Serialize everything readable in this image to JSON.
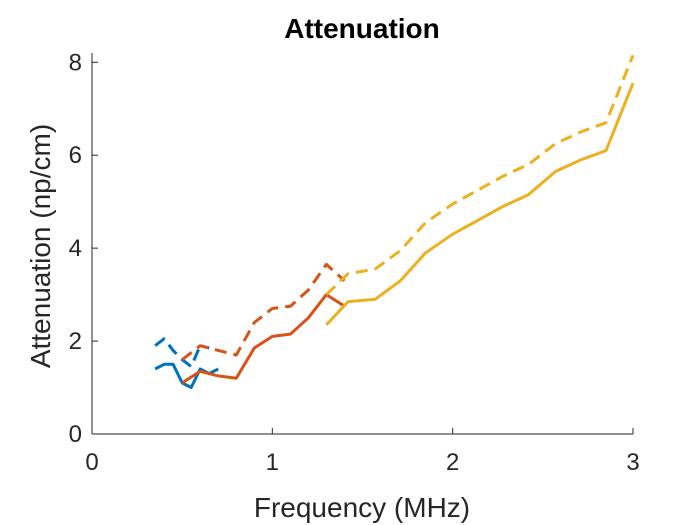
{
  "chart_data": {
    "type": "line",
    "title": "Attenuation",
    "xlabel": "Frequency (MHz)",
    "ylabel": "Attenuation (np/cm)",
    "xlim": [
      0,
      3
    ],
    "ylim": [
      0,
      8.2
    ],
    "xticks": [
      0,
      1,
      2,
      3
    ],
    "yticks": [
      0,
      2,
      4,
      6,
      8
    ],
    "xtick_labels": [
      "0",
      "1",
      "2",
      "3"
    ],
    "ytick_labels": [
      "0",
      "2",
      "4",
      "6",
      "8"
    ],
    "grid": false,
    "legend": "none",
    "series": [
      {
        "color": "#0072BD",
        "style": "solid",
        "x": [
          0.35,
          0.4,
          0.45,
          0.5,
          0.55,
          0.6,
          0.65,
          0.7
        ],
        "y": [
          1.4,
          1.5,
          1.5,
          1.1,
          1.0,
          1.4,
          1.3,
          1.4
        ]
      },
      {
        "color": "#0072BD",
        "style": "dashed",
        "x": [
          0.35,
          0.4,
          0.45,
          0.5,
          0.55,
          0.6,
          0.65
        ],
        "y": [
          1.9,
          2.05,
          1.8,
          1.6,
          1.45,
          1.9,
          1.85
        ]
      },
      {
        "color": "#D95319",
        "style": "solid",
        "x": [
          0.5,
          0.6,
          0.7,
          0.8,
          0.9,
          1.0,
          1.1,
          1.2,
          1.3,
          1.4
        ],
        "y": [
          1.1,
          1.35,
          1.25,
          1.2,
          1.85,
          2.1,
          2.15,
          2.5,
          3.0,
          2.75
        ]
      },
      {
        "color": "#D95319",
        "style": "dashed",
        "x": [
          0.5,
          0.6,
          0.7,
          0.8,
          0.9,
          1.0,
          1.1,
          1.2,
          1.3,
          1.4
        ],
        "y": [
          1.6,
          1.9,
          1.8,
          1.7,
          2.4,
          2.7,
          2.75,
          3.1,
          3.65,
          3.3
        ]
      },
      {
        "color": "#EDB120",
        "style": "solid",
        "x": [
          1.3,
          1.42,
          1.57,
          1.71,
          1.85,
          2.0,
          2.14,
          2.28,
          2.42,
          2.57,
          2.71,
          2.85,
          3.0
        ],
        "y": [
          2.35,
          2.85,
          2.9,
          3.3,
          3.9,
          4.3,
          4.6,
          4.9,
          5.15,
          5.65,
          5.9,
          6.1,
          7.55
        ]
      },
      {
        "color": "#EDB120",
        "style": "dashed",
        "x": [
          1.3,
          1.42,
          1.57,
          1.71,
          1.85,
          2.0,
          2.14,
          2.28,
          2.42,
          2.57,
          2.71,
          2.85,
          3.0
        ],
        "y": [
          3.0,
          3.45,
          3.55,
          3.95,
          4.55,
          4.95,
          5.25,
          5.55,
          5.8,
          6.25,
          6.5,
          6.7,
          8.15
        ]
      }
    ]
  }
}
